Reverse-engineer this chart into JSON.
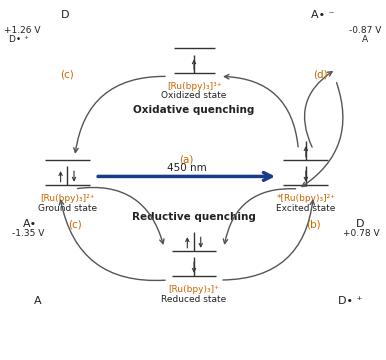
{
  "bg_color": "#ffffff",
  "arrow_color": "#1a3a8a",
  "curve_color": "#555555",
  "orange": "#cc6600",
  "black": "#222222",
  "title_ox": "Oxidative quenching",
  "title_red": "Reductive quenching",
  "arrow_label": "(a)",
  "arrow_text": "450 nm",
  "ox_label": "[Ru(bpy)₃]³⁺",
  "ox_sub": "Oxidized state",
  "gs_label": "[Ru(bpy)₃]²⁺",
  "gs_sub": "Ground state",
  "ex_label": "*[Ru(bpy)₃]²⁺",
  "ex_sub": "Excited state",
  "red_label": "[Ru(bpy)₃]⁺",
  "red_sub": "Reduced state",
  "tl_D": "D",
  "tl_Dp": "D• ⁺",
  "tl_V": "+1.26 V",
  "tl_c": "(c)",
  "tr_Am": "A• ⁻",
  "tr_A": "A",
  "tr_V": "-0.87 V",
  "tr_d": "(d)",
  "bl_Am": "A•",
  "bl_A": "A",
  "bl_V": "-1.35 V",
  "bl_c": "(c)",
  "br_D": "D",
  "br_Dp": "D• ⁺",
  "br_V": "+0.78 V",
  "br_b": "(b)"
}
